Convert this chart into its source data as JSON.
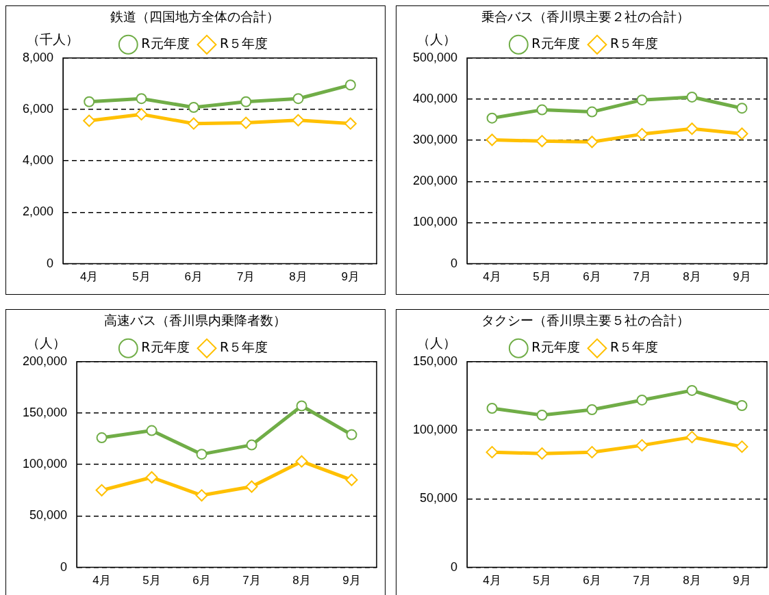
{
  "chart_data": [
    {
      "type": "line",
      "title": "鉄道（四国地方全体の合計）",
      "ylabel": "（千人）",
      "categories": [
        "4月",
        "5月",
        "6月",
        "7月",
        "8月",
        "9月"
      ],
      "series": [
        {
          "name": "R元年度",
          "color": "#70ad47",
          "marker": "circle",
          "values": [
            6300,
            6420,
            6080,
            6300,
            6420,
            6950
          ]
        },
        {
          "name": "R５年度",
          "color": "#ffc000",
          "marker": "diamond",
          "values": [
            5560,
            5810,
            5450,
            5480,
            5580,
            5450
          ]
        }
      ],
      "ylim": [
        0,
        8000
      ],
      "yticks": [
        {
          "value": 0,
          "label": "0"
        },
        {
          "value": 2000,
          "label": "2,000"
        },
        {
          "value": 4000,
          "label": "4,000"
        },
        {
          "value": 6000,
          "label": "6,000"
        },
        {
          "value": 8000,
          "label": "8,000"
        }
      ],
      "grid": "y",
      "legend": "top",
      "line_style": "solid"
    },
    {
      "type": "line",
      "title": "乗合バス（香川県主要２社の合計）",
      "ylabel": "（人）",
      "categories": [
        "4月",
        "5月",
        "6月",
        "7月",
        "8月",
        "9月"
      ],
      "series": [
        {
          "name": "R元年度",
          "color": "#70ad47",
          "marker": "circle",
          "values": [
            354000,
            374000,
            369000,
            398000,
            405000,
            378000
          ]
        },
        {
          "name": "R５年度",
          "color": "#ffc000",
          "marker": "diamond",
          "values": [
            301000,
            298000,
            296000,
            315000,
            328000,
            316000
          ]
        }
      ],
      "ylim": [
        0,
        500000
      ],
      "yticks": [
        {
          "value": 0,
          "label": "0"
        },
        {
          "value": 100000,
          "label": "100,000"
        },
        {
          "value": 200000,
          "label": "200,000"
        },
        {
          "value": 300000,
          "label": "300,000"
        },
        {
          "value": 400000,
          "label": "400,000"
        },
        {
          "value": 500000,
          "label": "500,000"
        }
      ],
      "grid": "y",
      "legend": "top",
      "line_style": "solid"
    },
    {
      "type": "line",
      "title": "高速バス（香川県内乗降者数）",
      "ylabel": "（人）",
      "categories": [
        "4月",
        "5月",
        "6月",
        "7月",
        "8月",
        "9月"
      ],
      "series": [
        {
          "name": "R元年度",
          "color": "#70ad47",
          "marker": "circle",
          "values": [
            126000,
            133000,
            110000,
            119000,
            157000,
            129000
          ]
        },
        {
          "name": "R５年度",
          "color": "#ffc000",
          "marker": "diamond",
          "values": [
            75000,
            87500,
            70000,
            78500,
            103000,
            85000
          ]
        }
      ],
      "ylim": [
        0,
        200000
      ],
      "yticks": [
        {
          "value": 0,
          "label": "0"
        },
        {
          "value": 50000,
          "label": "50,000"
        },
        {
          "value": 100000,
          "label": "100,000"
        },
        {
          "value": 150000,
          "label": "150,000"
        },
        {
          "value": 200000,
          "label": "200,000"
        }
      ],
      "grid": "y",
      "legend": "top",
      "line_style": "solid"
    },
    {
      "type": "line",
      "title": "タクシー（香川県主要５社の合計）",
      "ylabel": "（人）",
      "categories": [
        "4月",
        "5月",
        "6月",
        "7月",
        "8月",
        "9月"
      ],
      "series": [
        {
          "name": "R元年度",
          "color": "#70ad47",
          "marker": "circle",
          "values": [
            116000,
            111000,
            115000,
            122000,
            129000,
            118000
          ]
        },
        {
          "name": "R５年度",
          "color": "#ffc000",
          "marker": "diamond",
          "values": [
            84000,
            83000,
            84000,
            89000,
            95000,
            88000
          ]
        }
      ],
      "ylim": [
        0,
        150000
      ],
      "yticks": [
        {
          "value": 0,
          "label": "0"
        },
        {
          "value": 50000,
          "label": "50,000"
        },
        {
          "value": 100000,
          "label": "100,000"
        },
        {
          "value": 150000,
          "label": "150,000"
        }
      ],
      "grid": "y",
      "legend": "top",
      "line_style": "solid"
    }
  ]
}
